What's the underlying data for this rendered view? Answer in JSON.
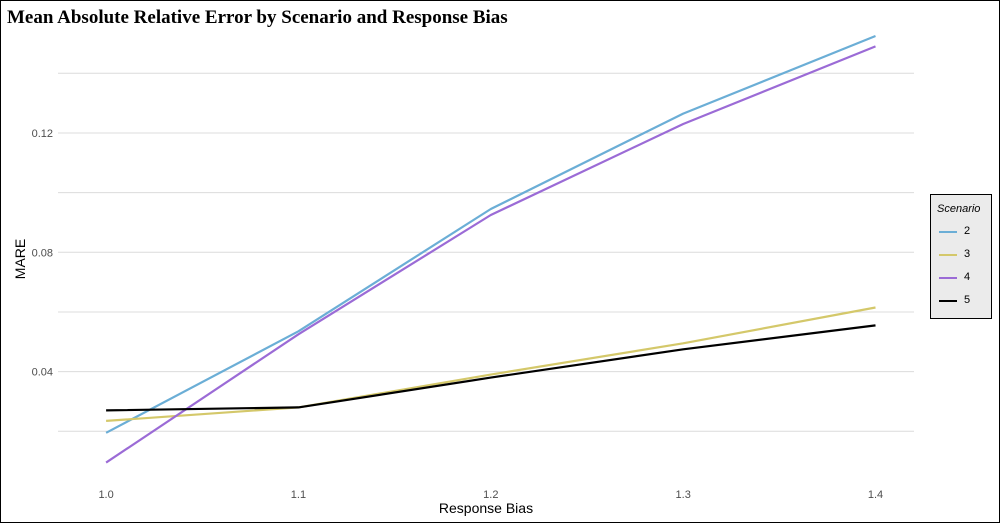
{
  "chart_data": {
    "type": "line",
    "title": "Mean Absolute Relative Error by Scenario and Response Bias",
    "xlabel": "Response Bias",
    "ylabel": "MARE",
    "x": [
      1.0,
      1.1,
      1.2,
      1.3,
      1.4
    ],
    "x_tick_labels": [
      "1.0",
      "1.1",
      "1.2",
      "1.3",
      "1.4"
    ],
    "y_ticks": [
      0.04,
      0.08,
      0.12
    ],
    "y_tick_labels": [
      "0.04",
      "0.08",
      "0.12"
    ],
    "xlim": [
      0.975,
      1.42
    ],
    "ylim": [
      0.002,
      0.1535
    ],
    "grid": true,
    "legend_title": "Scenario",
    "legend_position": "right",
    "series": [
      {
        "name": "2",
        "color": "#6baed6",
        "values": [
          0.0195,
          0.0535,
          0.0945,
          0.1265,
          0.1525
        ]
      },
      {
        "name": "3",
        "color": "#d4c86a",
        "values": [
          0.0235,
          0.028,
          0.039,
          0.0495,
          0.0615
        ]
      },
      {
        "name": "4",
        "color": "#9b6bd6",
        "values": [
          0.0095,
          0.0525,
          0.0925,
          0.123,
          0.149
        ]
      },
      {
        "name": "5",
        "color": "#000000",
        "values": [
          0.027,
          0.028,
          0.038,
          0.0475,
          0.0555
        ]
      }
    ]
  }
}
